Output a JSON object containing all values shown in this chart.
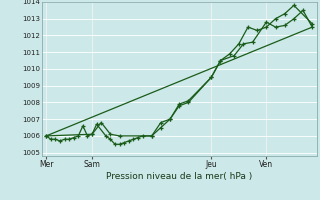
{
  "xlabel": "Pression niveau de la mer( hPa )",
  "ylim": [
    1004.8,
    1014.0
  ],
  "yticks": [
    1005,
    1006,
    1007,
    1008,
    1009,
    1010,
    1011,
    1012,
    1013,
    1014
  ],
  "background_color": "#cce8e8",
  "grid_color": "#b0d8d8",
  "line_color": "#1a5c1a",
  "day_labels": [
    "Mer",
    "Sam",
    "Jeu",
    "Ven"
  ],
  "day_positions": [
    0.5,
    5.5,
    18.5,
    24.5
  ],
  "vline_positions": [
    0.5,
    5.5,
    18.5,
    24.5
  ],
  "xlim": [
    0,
    30
  ],
  "total_x": 30,
  "series1_x": [
    0.5,
    1.0,
    1.5,
    2.0,
    2.5,
    3.0,
    3.5,
    4.0,
    4.5,
    5.0,
    5.5,
    6.0,
    7.0,
    7.5,
    8.0,
    8.5,
    9.0,
    9.5,
    10.0,
    10.5,
    11.0,
    12.0,
    13.0,
    14.0,
    15.0,
    16.0,
    18.5,
    19.5,
    21.0,
    22.0,
    23.0,
    24.5,
    25.5,
    26.5,
    27.5,
    28.5,
    29.5
  ],
  "series1_y": [
    1006.0,
    1005.8,
    1005.8,
    1005.7,
    1005.8,
    1005.8,
    1005.9,
    1006.0,
    1006.6,
    1006.0,
    1006.1,
    1006.7,
    1006.0,
    1005.8,
    1005.5,
    1005.5,
    1005.6,
    1005.7,
    1005.8,
    1005.9,
    1006.0,
    1006.0,
    1006.8,
    1007.0,
    1007.8,
    1008.0,
    1009.5,
    1010.5,
    1010.8,
    1011.5,
    1011.6,
    1012.8,
    1012.5,
    1012.6,
    1013.0,
    1013.5,
    1012.5
  ],
  "series2_x": [
    0.5,
    5.5,
    6.5,
    7.5,
    8.5,
    12.0,
    13.0,
    14.0,
    15.0,
    16.0,
    18.5,
    19.5,
    20.5,
    21.5,
    22.5,
    23.5,
    24.5,
    25.5,
    26.5,
    27.5,
    29.5
  ],
  "series2_y": [
    1006.0,
    1006.1,
    1006.8,
    1006.1,
    1006.0,
    1006.0,
    1006.5,
    1007.0,
    1007.9,
    1008.1,
    1009.5,
    1010.5,
    1010.9,
    1011.5,
    1012.5,
    1012.3,
    1012.5,
    1013.0,
    1013.3,
    1013.8,
    1012.7
  ],
  "series3_x": [
    0.5,
    29.5
  ],
  "series3_y": [
    1006.0,
    1012.5
  ]
}
